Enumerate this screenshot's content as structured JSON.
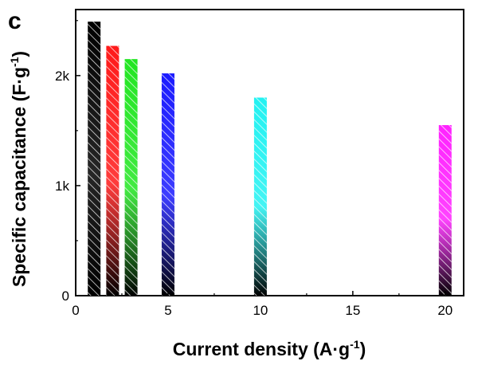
{
  "chart_data": {
    "type": "bar",
    "panel_label": "c",
    "xlabel": "Current density (A·g",
    "xlabel_sup": "-1",
    "xlabel_close": ")",
    "ylabel": "Specific capacitance (F·g",
    "ylabel_sup": "-1",
    "ylabel_close": ")",
    "xlim": [
      0,
      21
    ],
    "ylim": [
      0,
      2600
    ],
    "xticks": [
      0,
      5,
      10,
      15,
      20
    ],
    "yticks": [
      0,
      1000,
      2000
    ],
    "ytick_labels": [
      "0",
      "1k",
      "2k"
    ],
    "x": [
      1,
      2,
      3,
      5,
      10,
      20
    ],
    "values": [
      2490,
      2270,
      2150,
      2020,
      1800,
      1550
    ],
    "colors": [
      "#000000",
      "#ff1a1a",
      "#22e622",
      "#1a1aff",
      "#22f2f2",
      "#ff22ff"
    ],
    "grid": false,
    "legend": "none"
  }
}
